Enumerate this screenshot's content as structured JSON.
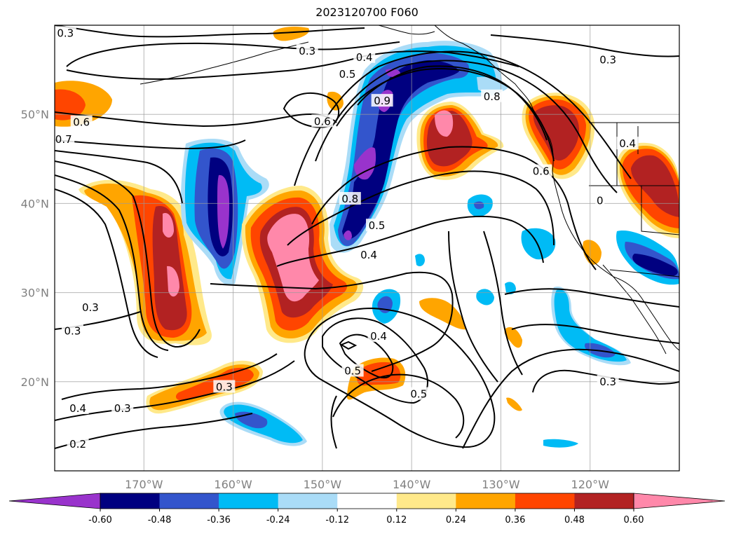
{
  "title": "2023120700 F060",
  "map": {
    "lon_range": [
      -180,
      -110
    ],
    "lat_range": [
      10,
      60
    ],
    "lon_ticks": [
      {
        "lon": -170,
        "label": "170°W"
      },
      {
        "lon": -160,
        "label": "160°W"
      },
      {
        "lon": -150,
        "label": "150°W"
      },
      {
        "lon": -140,
        "label": "140°W"
      },
      {
        "lon": -130,
        "label": "130°W"
      },
      {
        "lon": -120,
        "label": "120°W"
      }
    ],
    "lat_ticks": [
      {
        "lat": 20,
        "label": "20°N"
      },
      {
        "lat": 30,
        "label": "30°N"
      },
      {
        "lat": 40,
        "label": "40°N"
      },
      {
        "lat": 50,
        "label": "50°N"
      }
    ],
    "grid": true
  },
  "colorbar": {
    "colors": [
      "#9933cc",
      "#000080",
      "#3355cc",
      "#00bbf5",
      "#aadcf7",
      "#ffffff",
      "#ffe98a",
      "#ffa500",
      "#ff4500",
      "#b22222",
      "#ff88aa"
    ],
    "labels": [
      "-0.60",
      "-0.48",
      "-0.36",
      "-0.24",
      "-0.12",
      "0.12",
      "0.24",
      "0.36",
      "0.48",
      "0.60"
    ],
    "extend": "both"
  },
  "contour_labels": [
    {
      "text": "0.3",
      "lon": -178.8,
      "lat": 59.1
    },
    {
      "text": "0.3",
      "lon": -151.7,
      "lat": 57.1
    },
    {
      "text": "0.4",
      "lon": -145.3,
      "lat": 56.4
    },
    {
      "text": "0.5",
      "lon": -147.2,
      "lat": 54.5
    },
    {
      "text": "0.3",
      "lon": -118.0,
      "lat": 56.1
    },
    {
      "text": "0.6",
      "lon": -177.0,
      "lat": 49.1
    },
    {
      "text": "0.6",
      "lon": -150.0,
      "lat": 49.2
    },
    {
      "text": "0.7",
      "lon": -179.0,
      "lat": 47.2
    },
    {
      "text": "0.9",
      "lon": -143.3,
      "lat": 51.5
    },
    {
      "text": "0.8",
      "lon": -131.0,
      "lat": 52.0
    },
    {
      "text": "0.6",
      "lon": -125.5,
      "lat": 43.6
    },
    {
      "text": "0.4",
      "lon": -115.8,
      "lat": 46.7
    },
    {
      "text": "0",
      "lon": -118.9,
      "lat": 40.3
    },
    {
      "text": "0.8",
      "lon": -146.9,
      "lat": 40.5
    },
    {
      "text": "0.5",
      "lon": -143.9,
      "lat": 37.5
    },
    {
      "text": "0.4",
      "lon": -144.8,
      "lat": 34.2
    },
    {
      "text": "0.3",
      "lon": -176.0,
      "lat": 28.3
    },
    {
      "text": "0.3",
      "lon": -178.0,
      "lat": 25.7
    },
    {
      "text": "0.4",
      "lon": -143.7,
      "lat": 25.1
    },
    {
      "text": "0.5",
      "lon": -146.6,
      "lat": 21.2
    },
    {
      "text": "0.3",
      "lon": -161.0,
      "lat": 19.4
    },
    {
      "text": "0.5",
      "lon": -139.2,
      "lat": 18.6
    },
    {
      "text": "0.3",
      "lon": -118.0,
      "lat": 20.0
    },
    {
      "text": "0.4",
      "lon": -177.4,
      "lat": 17.0
    },
    {
      "text": "0.3",
      "lon": -172.4,
      "lat": 17.0
    },
    {
      "text": "0.2",
      "lon": -177.4,
      "lat": 13.0
    }
  ]
}
